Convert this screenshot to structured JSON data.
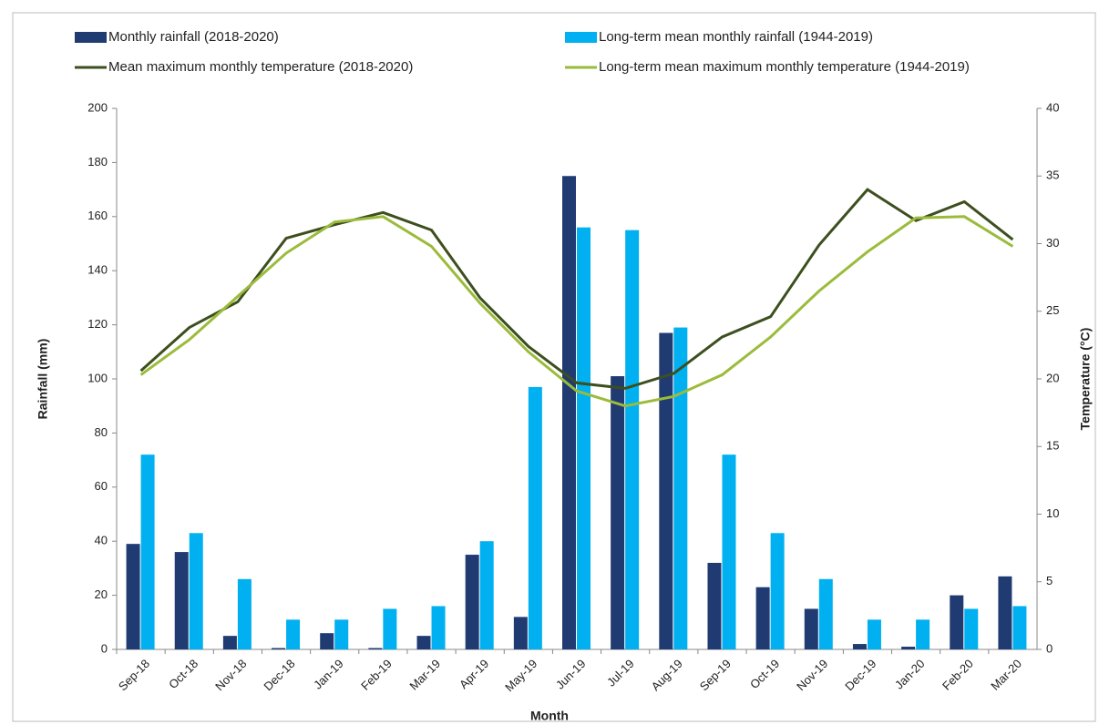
{
  "chart_data": {
    "type": "combo",
    "x_label": "Month",
    "y_label": "Rainfall (mm)",
    "y2_label": "Temperature (°C)",
    "categories": [
      "Sep-18",
      "Oct-18",
      "Nov-18",
      "Dec-18",
      "Jan-19",
      "Feb-19",
      "Mar-19",
      "Apr-19",
      "May-19",
      "Jun-19",
      "Jul-19",
      "Aug-19",
      "Sep-19",
      "Oct-19",
      "Nov-19",
      "Dec-19",
      "Jan-20",
      "Feb-20",
      "Mar-20"
    ],
    "series": [
      {
        "name": "Monthly rainfall (2018-2020)",
        "type": "bar",
        "color": "#203a72",
        "values": [
          39,
          36,
          5,
          0.5,
          6,
          0.5,
          5,
          35,
          12,
          175,
          101,
          117,
          32,
          23,
          15,
          2,
          1,
          20,
          27
        ]
      },
      {
        "name": "Long-term mean monthly rainfall (1944-2019)",
        "type": "bar",
        "color": "#00b0f0",
        "values": [
          72,
          43,
          26,
          11,
          11,
          15,
          16,
          40,
          97,
          156,
          155,
          119,
          72,
          43,
          26,
          11,
          11,
          15,
          16
        ]
      },
      {
        "name": "Mean maximum monthly  temperature (2018-2020)",
        "type": "line",
        "axis": "y2",
        "color": "#3d4f1e",
        "values": [
          20.6,
          23.8,
          25.7,
          30.4,
          31.4,
          32.3,
          31.0,
          26.0,
          22.4,
          19.7,
          19.3,
          20.4,
          23.1,
          24.6,
          29.9,
          34.0,
          31.7,
          33.1,
          30.3
        ]
      },
      {
        "name": "Long-term mean maximum monthly temperature (1944-2019)",
        "type": "line",
        "axis": "y2",
        "color": "#9bbb3b",
        "values": [
          20.3,
          22.9,
          26.1,
          29.3,
          31.6,
          32.0,
          29.8,
          25.6,
          22.0,
          19.1,
          18.0,
          18.7,
          20.3,
          23.1,
          26.5,
          29.4,
          31.9,
          32.0,
          29.8
        ]
      }
    ],
    "ylim": [
      0,
      200
    ],
    "yticks": [
      0,
      20,
      40,
      60,
      80,
      100,
      120,
      140,
      160,
      180,
      200
    ],
    "y2lim": [
      0,
      40
    ],
    "y2ticks": [
      0,
      5,
      10,
      15,
      20,
      25,
      30,
      35,
      40
    ]
  }
}
